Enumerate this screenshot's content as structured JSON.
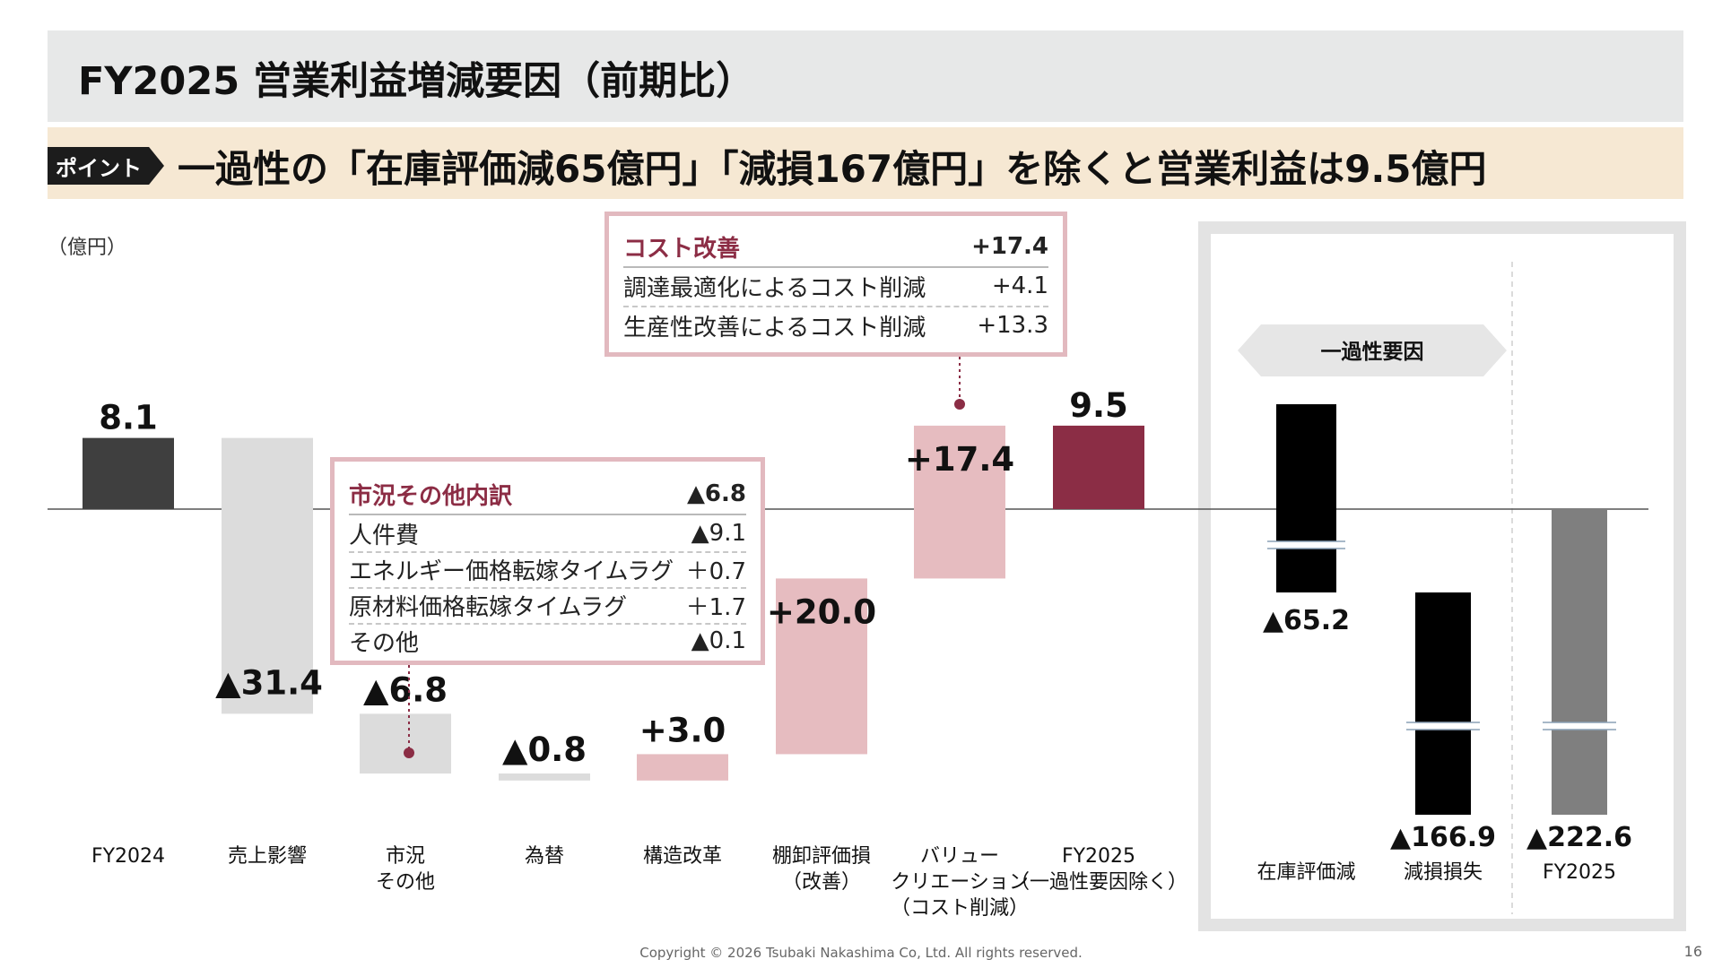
{
  "header": {
    "title": "FY2025 営業利益増減要因（前期比）",
    "point_badge": "ポイント",
    "point_text": "一過性の「在庫評価減65億円」「減損167億円」を除くと営業利益は9.5億円"
  },
  "unit_label": "（億円）",
  "chart_data": {
    "type": "bar",
    "subtype": "waterfall",
    "ylim": [
      -230,
      20
    ],
    "grid": false,
    "steps": [
      {
        "id": "fy2024",
        "label_lines": [
          "FY2024"
        ],
        "kind": "total",
        "start": 0,
        "end": 8.1,
        "value_label": "8.1",
        "color": "#3f3f3f"
      },
      {
        "id": "sales",
        "label_lines": [
          "売上影響"
        ],
        "kind": "delta",
        "start": 8.1,
        "end": -23.3,
        "value_label": "▲31.4",
        "color": "#dcdcdc"
      },
      {
        "id": "market",
        "label_lines": [
          "市況",
          "その他"
        ],
        "kind": "delta",
        "start": -23.3,
        "end": -30.1,
        "value_label": "▲6.8",
        "color": "#dcdcdc"
      },
      {
        "id": "fx",
        "label_lines": [
          "為替"
        ],
        "kind": "delta",
        "start": -30.1,
        "end": -30.9,
        "value_label": "▲0.8",
        "color": "#dcdcdc"
      },
      {
        "id": "restructure",
        "label_lines": [
          "構造改革"
        ],
        "kind": "delta",
        "start": -30.9,
        "end": -27.9,
        "value_label": "+3.0",
        "color": "#e6bcc0"
      },
      {
        "id": "inventory",
        "label_lines": [
          "棚卸評価損",
          "（改善）"
        ],
        "kind": "delta",
        "start": -27.9,
        "end": -7.9,
        "value_label": "+20.0",
        "color": "#e6bcc0"
      },
      {
        "id": "value",
        "label_lines": [
          "バリュー",
          "クリエーション",
          "（コスト削減）"
        ],
        "kind": "delta",
        "start": -7.9,
        "end": 9.5,
        "value_label": "+17.4",
        "color": "#e6bcc0"
      },
      {
        "id": "fy2025ex",
        "label_lines": [
          "FY2025",
          "（一過性要因除く）"
        ],
        "kind": "total",
        "start": 0,
        "end": 9.5,
        "value_label": "9.5",
        "color": "#8b2d45"
      },
      {
        "id": "invloss",
        "label_lines": [
          "在庫評価減"
        ],
        "kind": "delta",
        "start": 9.5,
        "end": -55.7,
        "value_label": "▲65.2",
        "color": "#000000",
        "broken": true
      },
      {
        "id": "impair",
        "label_lines": [
          "減損損失"
        ],
        "kind": "delta",
        "start": -55.7,
        "end": -222.6,
        "value_label": "▲166.9",
        "color": "#000000",
        "broken": true
      },
      {
        "id": "fy2025",
        "label_lines": [
          "FY2025"
        ],
        "kind": "total",
        "start": 0,
        "end": -222.6,
        "value_label": "▲222.6",
        "color": "#7f7f7f",
        "broken": true
      }
    ],
    "one_time_label": "一過性要因"
  },
  "box_market": {
    "title": "市況その他内訳",
    "total": "▲6.8",
    "rows": [
      {
        "label": "人件費",
        "value": "▲9.1"
      },
      {
        "label": "エネルギー価格転嫁タイムラグ",
        "value": "＋0.7"
      },
      {
        "label": "原材料価格転嫁タイムラグ",
        "value": "＋1.7"
      },
      {
        "label": "その他",
        "value": "▲0.1"
      }
    ]
  },
  "box_cost": {
    "title": "コスト改善",
    "total": "+17.4",
    "rows": [
      {
        "label": "調達最適化によるコスト削減",
        "value": "+4.1"
      },
      {
        "label": "生産性改善によるコスト削減",
        "value": "+13.3"
      }
    ]
  },
  "footer": {
    "copyright": "Copyright © 2026 Tsubaki Nakashima Co, Ltd. All rights reserved.",
    "page": "16"
  },
  "colors": {
    "accent": "#8b2d45",
    "box_border": "#e2b9bf",
    "point_bg": "#f6e8d3",
    "title_bg": "#e7e8e8"
  }
}
